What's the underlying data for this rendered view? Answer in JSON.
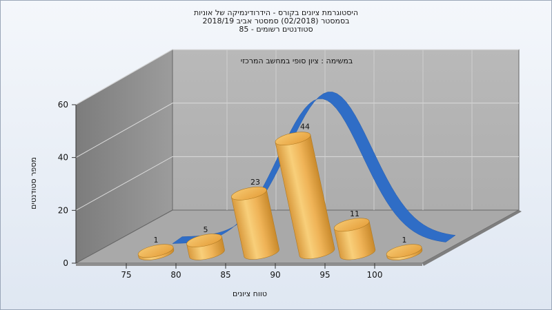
{
  "header": {
    "title_line1": "היסטוגרמת ציונים בקורס - הידרודינמיקה של אוניות",
    "title_line2": "בסמסטר  (02/2018)  סמסטר אביב 2018/19",
    "title_line3": "סטודנטים רשומים - 85"
  },
  "chart_data": {
    "type": "bar",
    "subtitle": "במשימה : ציון סופי במחשב המרכזי",
    "xlabel": "טווח ציונים",
    "ylabel": "מספר סטודנטים",
    "categories": [
      "75",
      "80",
      "85",
      "90",
      "95",
      "100"
    ],
    "values": [
      1,
      5,
      23,
      44,
      11,
      1
    ],
    "ylim": [
      0,
      60
    ],
    "yticks": [
      "0",
      "20",
      "40",
      "60"
    ],
    "x_tick_labels": [
      "75",
      "80",
      "85",
      "90",
      "95",
      "100"
    ],
    "grid": true,
    "three_d": true,
    "colors": {
      "bar": "#e8a441",
      "curve": "#2f6dc6",
      "wall": "#b4b4b4",
      "floor": "#a8a8a8"
    }
  }
}
